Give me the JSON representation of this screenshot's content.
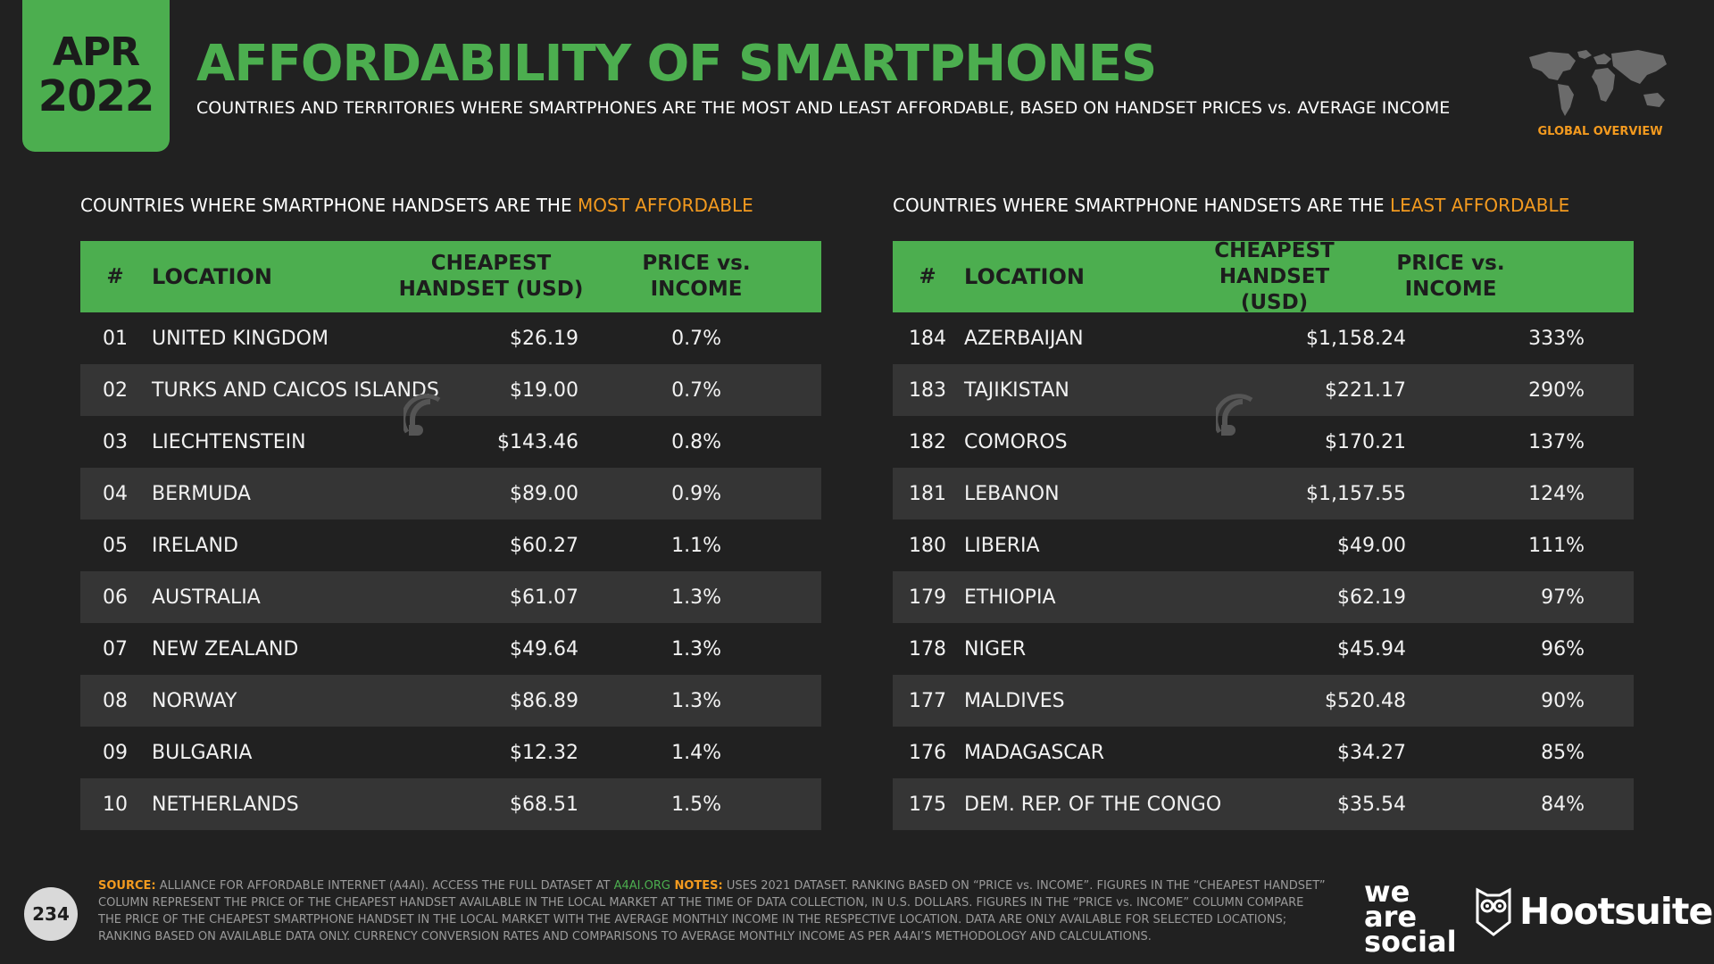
{
  "header": {
    "month": "APR",
    "year": "2022",
    "title": "AFFORDABILITY OF SMARTPHONES",
    "subtitle": "COUNTRIES AND TERRITORIES WHERE SMARTPHONES ARE THE MOST AND LEAST AFFORDABLE, BASED ON HANDSET PRICES vs. AVERAGE INCOME",
    "section_label": "GLOBAL OVERVIEW"
  },
  "colors": {
    "accent_green": "#4cae4f",
    "accent_orange": "#f39a1f",
    "background": "#212121"
  },
  "left": {
    "heading_prefix": "COUNTRIES WHERE SMARTPHONE HANDSETS ARE THE ",
    "heading_accent": "MOST AFFORDABLE",
    "columns": {
      "rank": "#",
      "location": "LOCATION",
      "price_1": "CHEAPEST",
      "price_2": "HANDSET (USD)",
      "ratio_1": "PRICE vs.",
      "ratio_2": "INCOME"
    },
    "rows": [
      {
        "rank": "01",
        "location": "UNITED KINGDOM",
        "price": "$26.19",
        "ratio": "0.7%"
      },
      {
        "rank": "02",
        "location": "TURKS AND CAICOS ISLANDS",
        "price": "$19.00",
        "ratio": "0.7%"
      },
      {
        "rank": "03",
        "location": "LIECHTENSTEIN",
        "price": "$143.46",
        "ratio": "0.8%"
      },
      {
        "rank": "04",
        "location": "BERMUDA",
        "price": "$89.00",
        "ratio": "0.9%"
      },
      {
        "rank": "05",
        "location": "IRELAND",
        "price": "$60.27",
        "ratio": "1.1%"
      },
      {
        "rank": "06",
        "location": "AUSTRALIA",
        "price": "$61.07",
        "ratio": "1.3%"
      },
      {
        "rank": "07",
        "location": "NEW ZEALAND",
        "price": "$49.64",
        "ratio": "1.3%"
      },
      {
        "rank": "08",
        "location": "NORWAY",
        "price": "$86.89",
        "ratio": "1.3%"
      },
      {
        "rank": "09",
        "location": "BULGARIA",
        "price": "$12.32",
        "ratio": "1.4%"
      },
      {
        "rank": "10",
        "location": "NETHERLANDS",
        "price": "$68.51",
        "ratio": "1.5%"
      }
    ]
  },
  "right": {
    "heading_prefix": "COUNTRIES WHERE SMARTPHONE HANDSETS ARE THE ",
    "heading_accent": "LEAST AFFORDABLE",
    "columns": {
      "rank": "#",
      "location": "LOCATION",
      "price_1": "CHEAPEST",
      "price_2": "HANDSET (USD)",
      "ratio_1": "PRICE vs.",
      "ratio_2": "INCOME"
    },
    "rows": [
      {
        "rank": "184",
        "location": "AZERBAIJAN",
        "price": "$1,158.24",
        "ratio": "333%"
      },
      {
        "rank": "183",
        "location": "TAJIKISTAN",
        "price": "$221.17",
        "ratio": "290%"
      },
      {
        "rank": "182",
        "location": "COMOROS",
        "price": "$170.21",
        "ratio": "137%"
      },
      {
        "rank": "181",
        "location": "LEBANON",
        "price": "$1,157.55",
        "ratio": "124%"
      },
      {
        "rank": "180",
        "location": "LIBERIA",
        "price": "$49.00",
        "ratio": "111%"
      },
      {
        "rank": "179",
        "location": "ETHIOPIA",
        "price": "$62.19",
        "ratio": "97%"
      },
      {
        "rank": "178",
        "location": "NIGER",
        "price": "$45.94",
        "ratio": "96%"
      },
      {
        "rank": "177",
        "location": "MALDIVES",
        "price": "$520.48",
        "ratio": "90%"
      },
      {
        "rank": "176",
        "location": "MADAGASCAR",
        "price": "$34.27",
        "ratio": "85%"
      },
      {
        "rank": "175",
        "location": "DEM. REP. OF THE CONGO",
        "price": "$35.54",
        "ratio": "84%"
      }
    ]
  },
  "footer": {
    "source_label": "SOURCE:",
    "source_text": " ALLIANCE FOR AFFORDABLE INTERNET (A4AI). ACCESS THE FULL DATASET AT ",
    "source_link": "A4AI.ORG",
    "notes_label": " NOTES:",
    "notes_text": " USES 2021 DATASET. RANKING BASED ON “PRICE vs. INCOME”. FIGURES IN THE “CHEAPEST HANDSET” COLUMN REPRESENT THE PRICE OF THE CHEAPEST HANDSET AVAILABLE IN THE LOCAL MARKET AT THE TIME OF DATA COLLECTION, IN U.S. DOLLARS. FIGURES IN THE “PRICE vs. INCOME” COLUMN COMPARE THE PRICE OF THE CHEAPEST SMARTPHONE HANDSET IN THE LOCAL MARKET WITH THE AVERAGE MONTHLY INCOME IN THE RESPECTIVE LOCATION. DATA ARE ONLY AVAILABLE FOR SELECTED LOCATIONS; RANKING BASED ON AVAILABLE DATA ONLY. CURRENCY CONVERSION RATES AND COMPARISONS TO AVERAGE MONTHLY INCOME AS PER A4AI’S METHODOLOGY AND CALCULATIONS.",
    "page_number": "234",
    "brand_1_line1": "we",
    "brand_1_line2": "are",
    "brand_1_line3": "social",
    "brand_2": "Hootsuite",
    "brand_2_mark": "®"
  }
}
